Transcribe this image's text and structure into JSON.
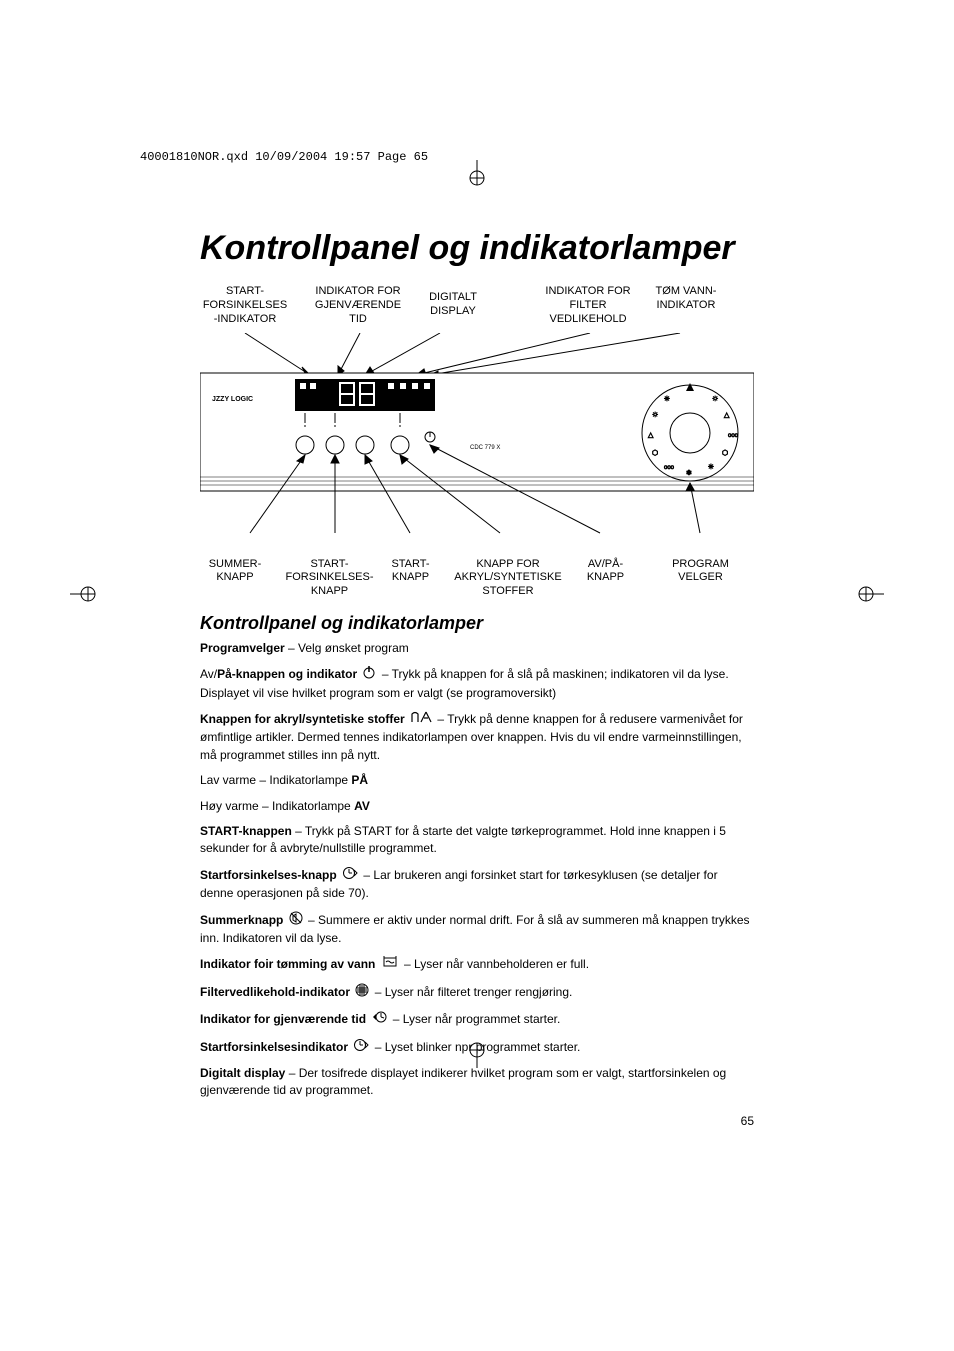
{
  "header_line": "40001810NOR.qxd  10/09/2004  19:57  Page 65",
  "title": "Kontrollpanel og indikatorlamper",
  "labels_top": {
    "delay_ind": "START-\nFORSINKELSES\n-INDIKATOR",
    "remain_ind": "INDIKATOR FOR\nGJENVÆRENDE\nTID",
    "display": "DIGITALT\nDISPLAY",
    "filter": "INDIKATOR FOR\nFILTER\nVEDLIKEHOLD",
    "empty": "TØM VANN-\nINDIKATOR"
  },
  "labels_bottom": {
    "summer": "SUMMER-\nKNAPP",
    "delay": "START-\nFORSINKELSES-\nKNAPP",
    "start": "START-\nKNAPP",
    "acryl": "KNAPP FOR\nAKRYL/SYNTETISKE\nSTOFFER",
    "onoff": "AV/PÅ-\nKNAPP",
    "prog": "PROGRAM\nVELGER"
  },
  "diagram": {
    "brand": "JZZY LOGIC",
    "model": "CDC 779 X"
  },
  "subtitle": "Kontrollpanel og indikatorlamper",
  "body": {
    "p1_b": "Programvelger",
    "p1_t": " – Velg ønsket program",
    "p2_a": "Av/",
    "p2_b": "På-knappen og indikator",
    "p2_t": " – Trykk på knappen for å slå på maskinen; indikatoren vil da lyse. Displayet vil vise hvilket program som er valgt (se programoversikt)",
    "p3_b": "Knappen for akryl/syntetiske stoffer",
    "p3_t": " – Trykk på denne knappen for å redusere varmenivået for ømfintlige artikler. Dermed tennes indikatorlampen over knappen. Hvis du vil endre varmeinnstillingen, må programmet stilles inn på nytt.",
    "p4_a": "Lav varme – Indikatorlampe ",
    "p4_b": "PÅ",
    "p5_a": "Høy varme – Indikatorlampe ",
    "p5_b": "AV",
    "p6_b": "START-knappen",
    "p6_t": " – Trykk på START for å starte det valgte tørkeprogrammet. Hold inne knappen i 5 sekunder for å avbryte/nullstille programmet.",
    "p7_b": "Startforsinkelses-knapp",
    "p7_t": " – Lar brukeren angi forsinket start for tørkesyklusen (se detaljer for denne operasjonen på side 70).",
    "p8_b": "Summerknapp",
    "p8_t": " – Summere er aktiv under normal drift. For å slå av summeren må knappen trykkes inn. Indikatoren vil da lyse.",
    "p9_b": "Indikator foir tømming av vann",
    "p9_t": " – Lyser når vannbeholderen er full.",
    "p10_b": "Filtervedlikehold-indikator",
    "p10_t": " – Lyser når filteret trenger rengjøring.",
    "p11_b": "Indikator for gjenværende tid",
    "p11_t": " – Lyser når programmet starter.",
    "p12_b": "Startforsinkelsesindikator",
    "p12_t": " – Lyset blinker npr programmet starter.",
    "p13_b": "Digitalt display",
    "p13_t": " – Der tosifrede displayet indikerer hvilket program som er valgt, startforsinkelen og gjenværende tid av programmet."
  },
  "page_number": "65",
  "colors": {
    "text": "#000000",
    "bg": "#ffffff",
    "line": "#000000"
  },
  "fontsizes": {
    "h1": 34,
    "h2": 18,
    "body": 12,
    "labels": 11
  }
}
